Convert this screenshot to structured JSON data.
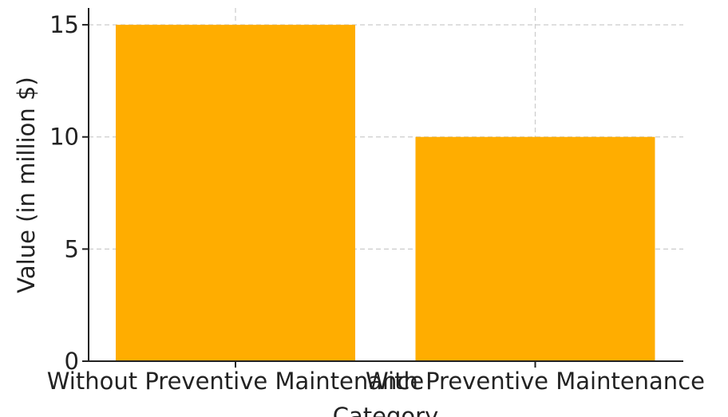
{
  "chart_data": {
    "type": "bar",
    "categories": [
      "Without Preventive Maintenance",
      "With Preventive Maintenance"
    ],
    "values": [
      15,
      10
    ],
    "title": "",
    "xlabel": "Category",
    "ylabel": "Value (in million $)",
    "ylim": [
      0,
      15.75
    ],
    "yticks": [
      0,
      5,
      10,
      15
    ],
    "grid": true,
    "bar_color": "#ffad00"
  }
}
